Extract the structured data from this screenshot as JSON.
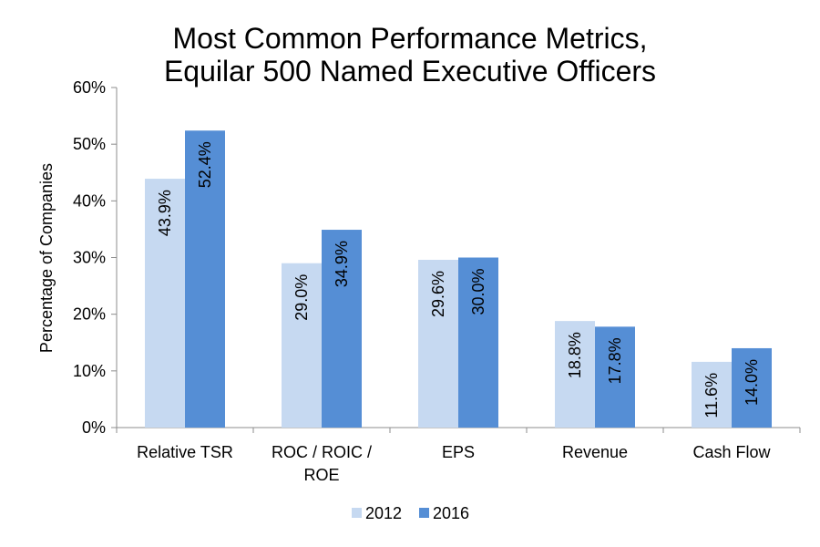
{
  "chart_data": {
    "type": "bar",
    "title": [
      "Most Common Performance Metrics,",
      "Equilar 500 Named Executive Officers"
    ],
    "ylabel": "Percentage of Companies",
    "xlabel": "",
    "ylim": [
      0,
      60
    ],
    "yticks": [
      0,
      10,
      20,
      30,
      40,
      50,
      60
    ],
    "ytick_labels": [
      "0%",
      "10%",
      "20%",
      "30%",
      "40%",
      "50%",
      "60%"
    ],
    "grid": false,
    "legend_position": "bottom-center",
    "categories": [
      [
        "Relative TSR"
      ],
      [
        "ROC / ROIC /",
        "ROE"
      ],
      [
        "EPS"
      ],
      [
        "Revenue"
      ],
      [
        "Cash Flow"
      ]
    ],
    "series": [
      {
        "name": "2012",
        "color": "#c6d9f1",
        "values": [
          43.9,
          29.0,
          29.6,
          18.8,
          11.6
        ],
        "labels": [
          "43.9%",
          "29.0%",
          "29.6%",
          "18.8%",
          "11.6%"
        ]
      },
      {
        "name": "2016",
        "color": "#558ed5",
        "values": [
          52.4,
          34.9,
          30.0,
          17.8,
          14.0
        ],
        "labels": [
          "52.4%",
          "34.9%",
          "30.0%",
          "17.8%",
          "14.0%"
        ]
      }
    ]
  }
}
